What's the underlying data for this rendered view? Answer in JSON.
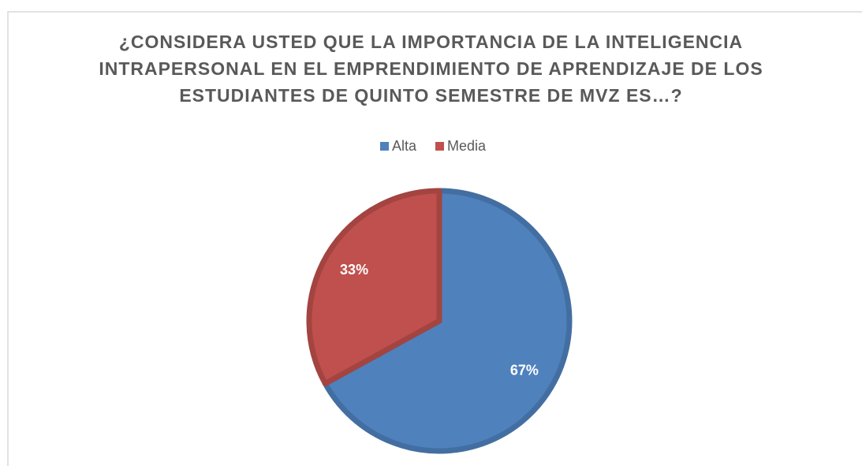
{
  "chart_data": {
    "type": "pie",
    "title": "¿CONSIDERA USTED QUE LA IMPORTANCIA DE LA INTELIGENCIA INTRAPERSONAL EN EL EMPRENDIMIENTO DE APRENDIZAJE DE LOS ESTUDIANTES DE QUINTO SEMESTRE DE MVZ ES…?",
    "categories": [
      "Alta",
      "Media"
    ],
    "values": [
      67,
      33
    ],
    "value_labels": [
      "67%",
      "33%"
    ],
    "colors": [
      "#4f81bd",
      "#c0504d"
    ],
    "legend": "top"
  }
}
